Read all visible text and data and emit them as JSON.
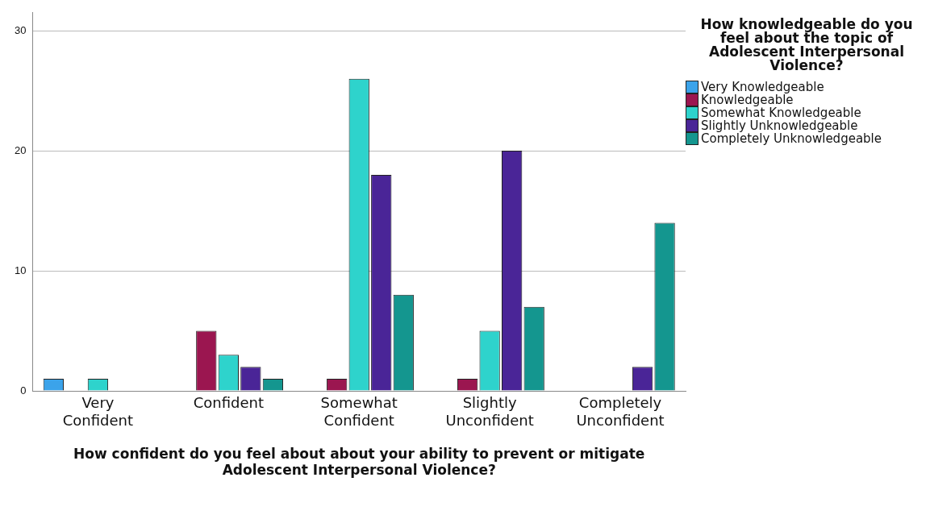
{
  "chart_data": {
    "type": "bar",
    "categories": [
      "Very Confident",
      "Confident",
      "Somewhat Confident",
      "Slightly Unconfident",
      "Completely Unconfident"
    ],
    "xlabel": "How confident do you feel about about your ability to prevent or mitigate Adolescent Interpersonal Violence?",
    "legend_title": "How knowledgeable do you feel about the topic of Adolescent Interpersonal Violence?",
    "series": [
      {
        "name": "Very Knowledgeable",
        "color": "#3ba3ea",
        "values": [
          1,
          null,
          null,
          null,
          null
        ]
      },
      {
        "name": "Knowledgeable",
        "color": "#9b1650",
        "values": [
          null,
          5,
          1,
          1,
          null
        ]
      },
      {
        "name": "Somewhat Knowledgeable",
        "color": "#2ed3cc",
        "values": [
          1,
          3,
          26,
          5,
          null
        ]
      },
      {
        "name": "Slightly Unknowledgeable",
        "color": "#4a2597",
        "values": [
          null,
          2,
          18,
          20,
          2
        ]
      },
      {
        "name": "Completely Unknowledgeable",
        "color": "#14968f",
        "values": [
          null,
          1,
          8,
          7,
          14
        ]
      }
    ],
    "ylim": [
      0,
      31.5
    ],
    "yticks": [
      0,
      10,
      20,
      30
    ],
    "grid": "y",
    "legend": "top right"
  }
}
